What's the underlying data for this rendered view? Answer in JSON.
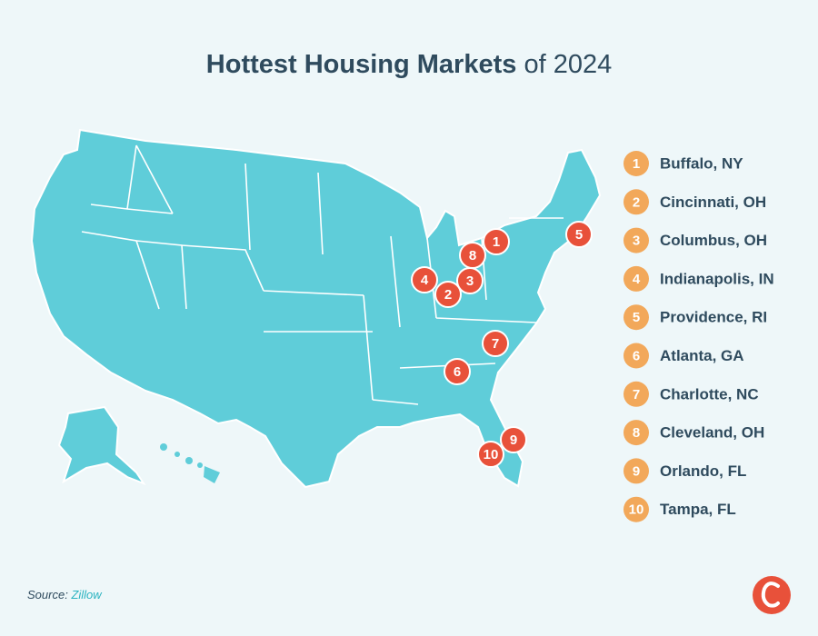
{
  "header": {
    "title_bold": "Hottest Housing Markets",
    "title_rest": "of 2024"
  },
  "markets": [
    {
      "rank": "1",
      "name": "Buffalo, NY"
    },
    {
      "rank": "2",
      "name": "Cincinnati, OH"
    },
    {
      "rank": "3",
      "name": "Columbus, OH"
    },
    {
      "rank": "4",
      "name": "Indianapolis, IN"
    },
    {
      "rank": "5",
      "name": "Providence, RI"
    },
    {
      "rank": "6",
      "name": "Atlanta, GA"
    },
    {
      "rank": "7",
      "name": "Charlotte, NC"
    },
    {
      "rank": "8",
      "name": "Cleveland, OH"
    },
    {
      "rank": "9",
      "name": "Orlando, FL"
    },
    {
      "rank": "10",
      "name": "Tampa, FL"
    }
  ],
  "footer": {
    "source_label": "Source:",
    "source_name": "Zillow"
  }
}
